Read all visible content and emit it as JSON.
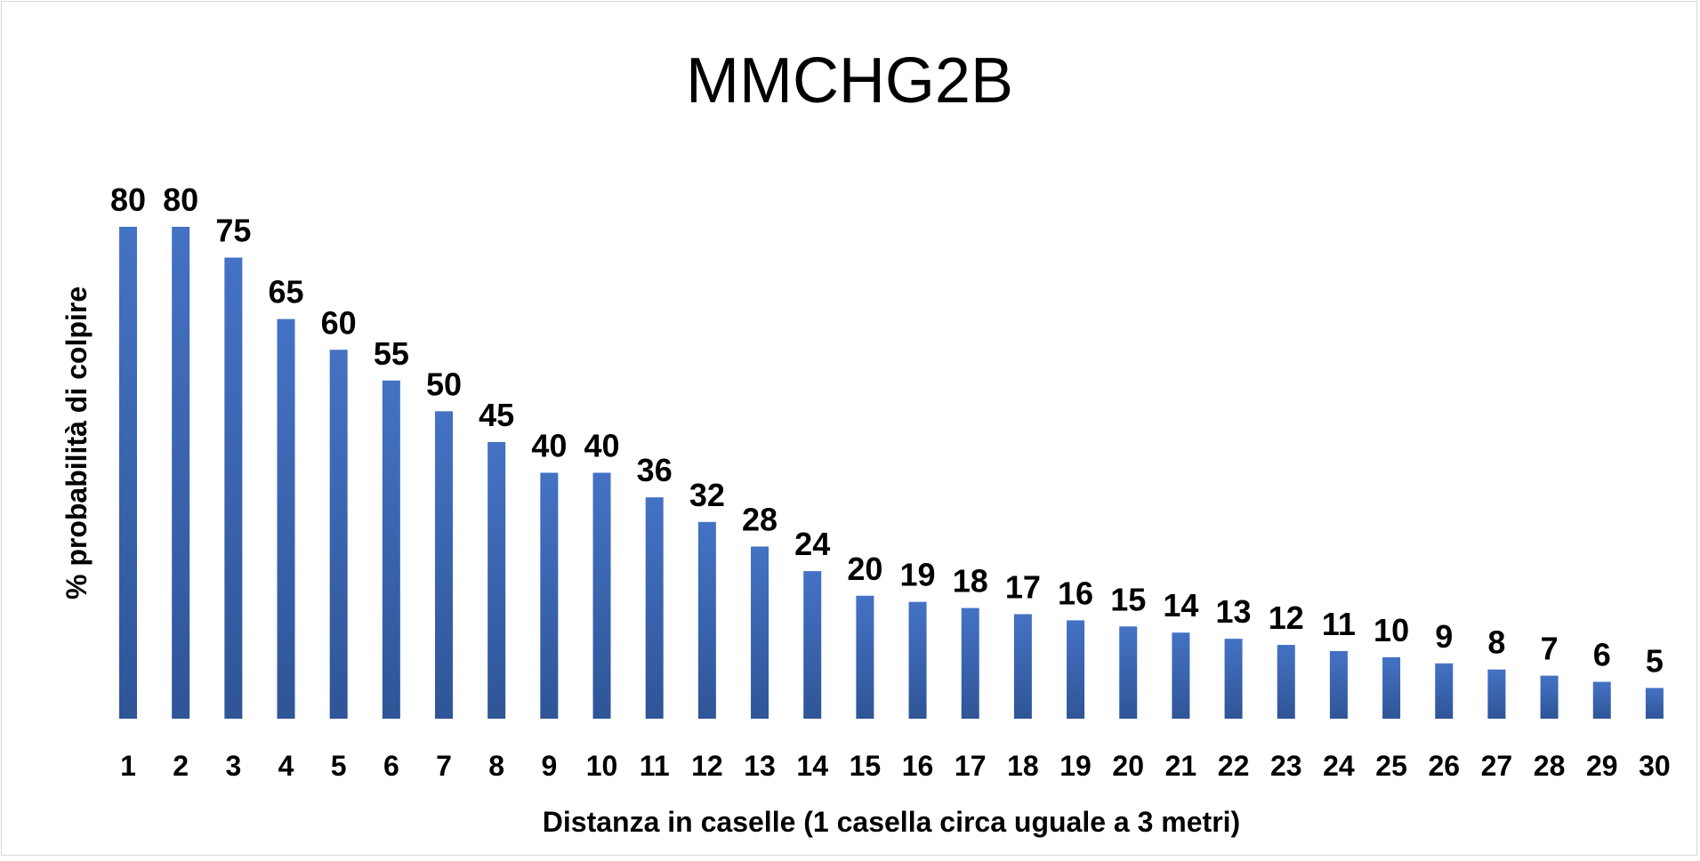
{
  "chart_data": {
    "type": "bar",
    "title": "MMCHG2B",
    "xlabel": "Distanza in caselle (1 casella circa uguale a 3 metri)",
    "ylabel": "% probabilità di colpire",
    "categories": [
      "1",
      "2",
      "3",
      "4",
      "5",
      "6",
      "7",
      "8",
      "9",
      "10",
      "11",
      "12",
      "13",
      "14",
      "15",
      "16",
      "17",
      "18",
      "19",
      "20",
      "21",
      "22",
      "23",
      "24",
      "25",
      "26",
      "27",
      "28",
      "29",
      "30"
    ],
    "values": [
      80,
      80,
      75,
      65,
      60,
      55,
      50,
      45,
      40,
      40,
      36,
      32,
      28,
      24,
      20,
      19,
      18,
      17,
      16,
      15,
      14,
      13,
      12,
      11,
      10,
      9,
      8,
      7,
      6,
      5
    ],
    "ylim": [
      0,
      80
    ],
    "grid": false,
    "legend": "none",
    "bar_color": "#4472C4",
    "bar_color_dark": "#2F5597",
    "data_labels": true
  }
}
